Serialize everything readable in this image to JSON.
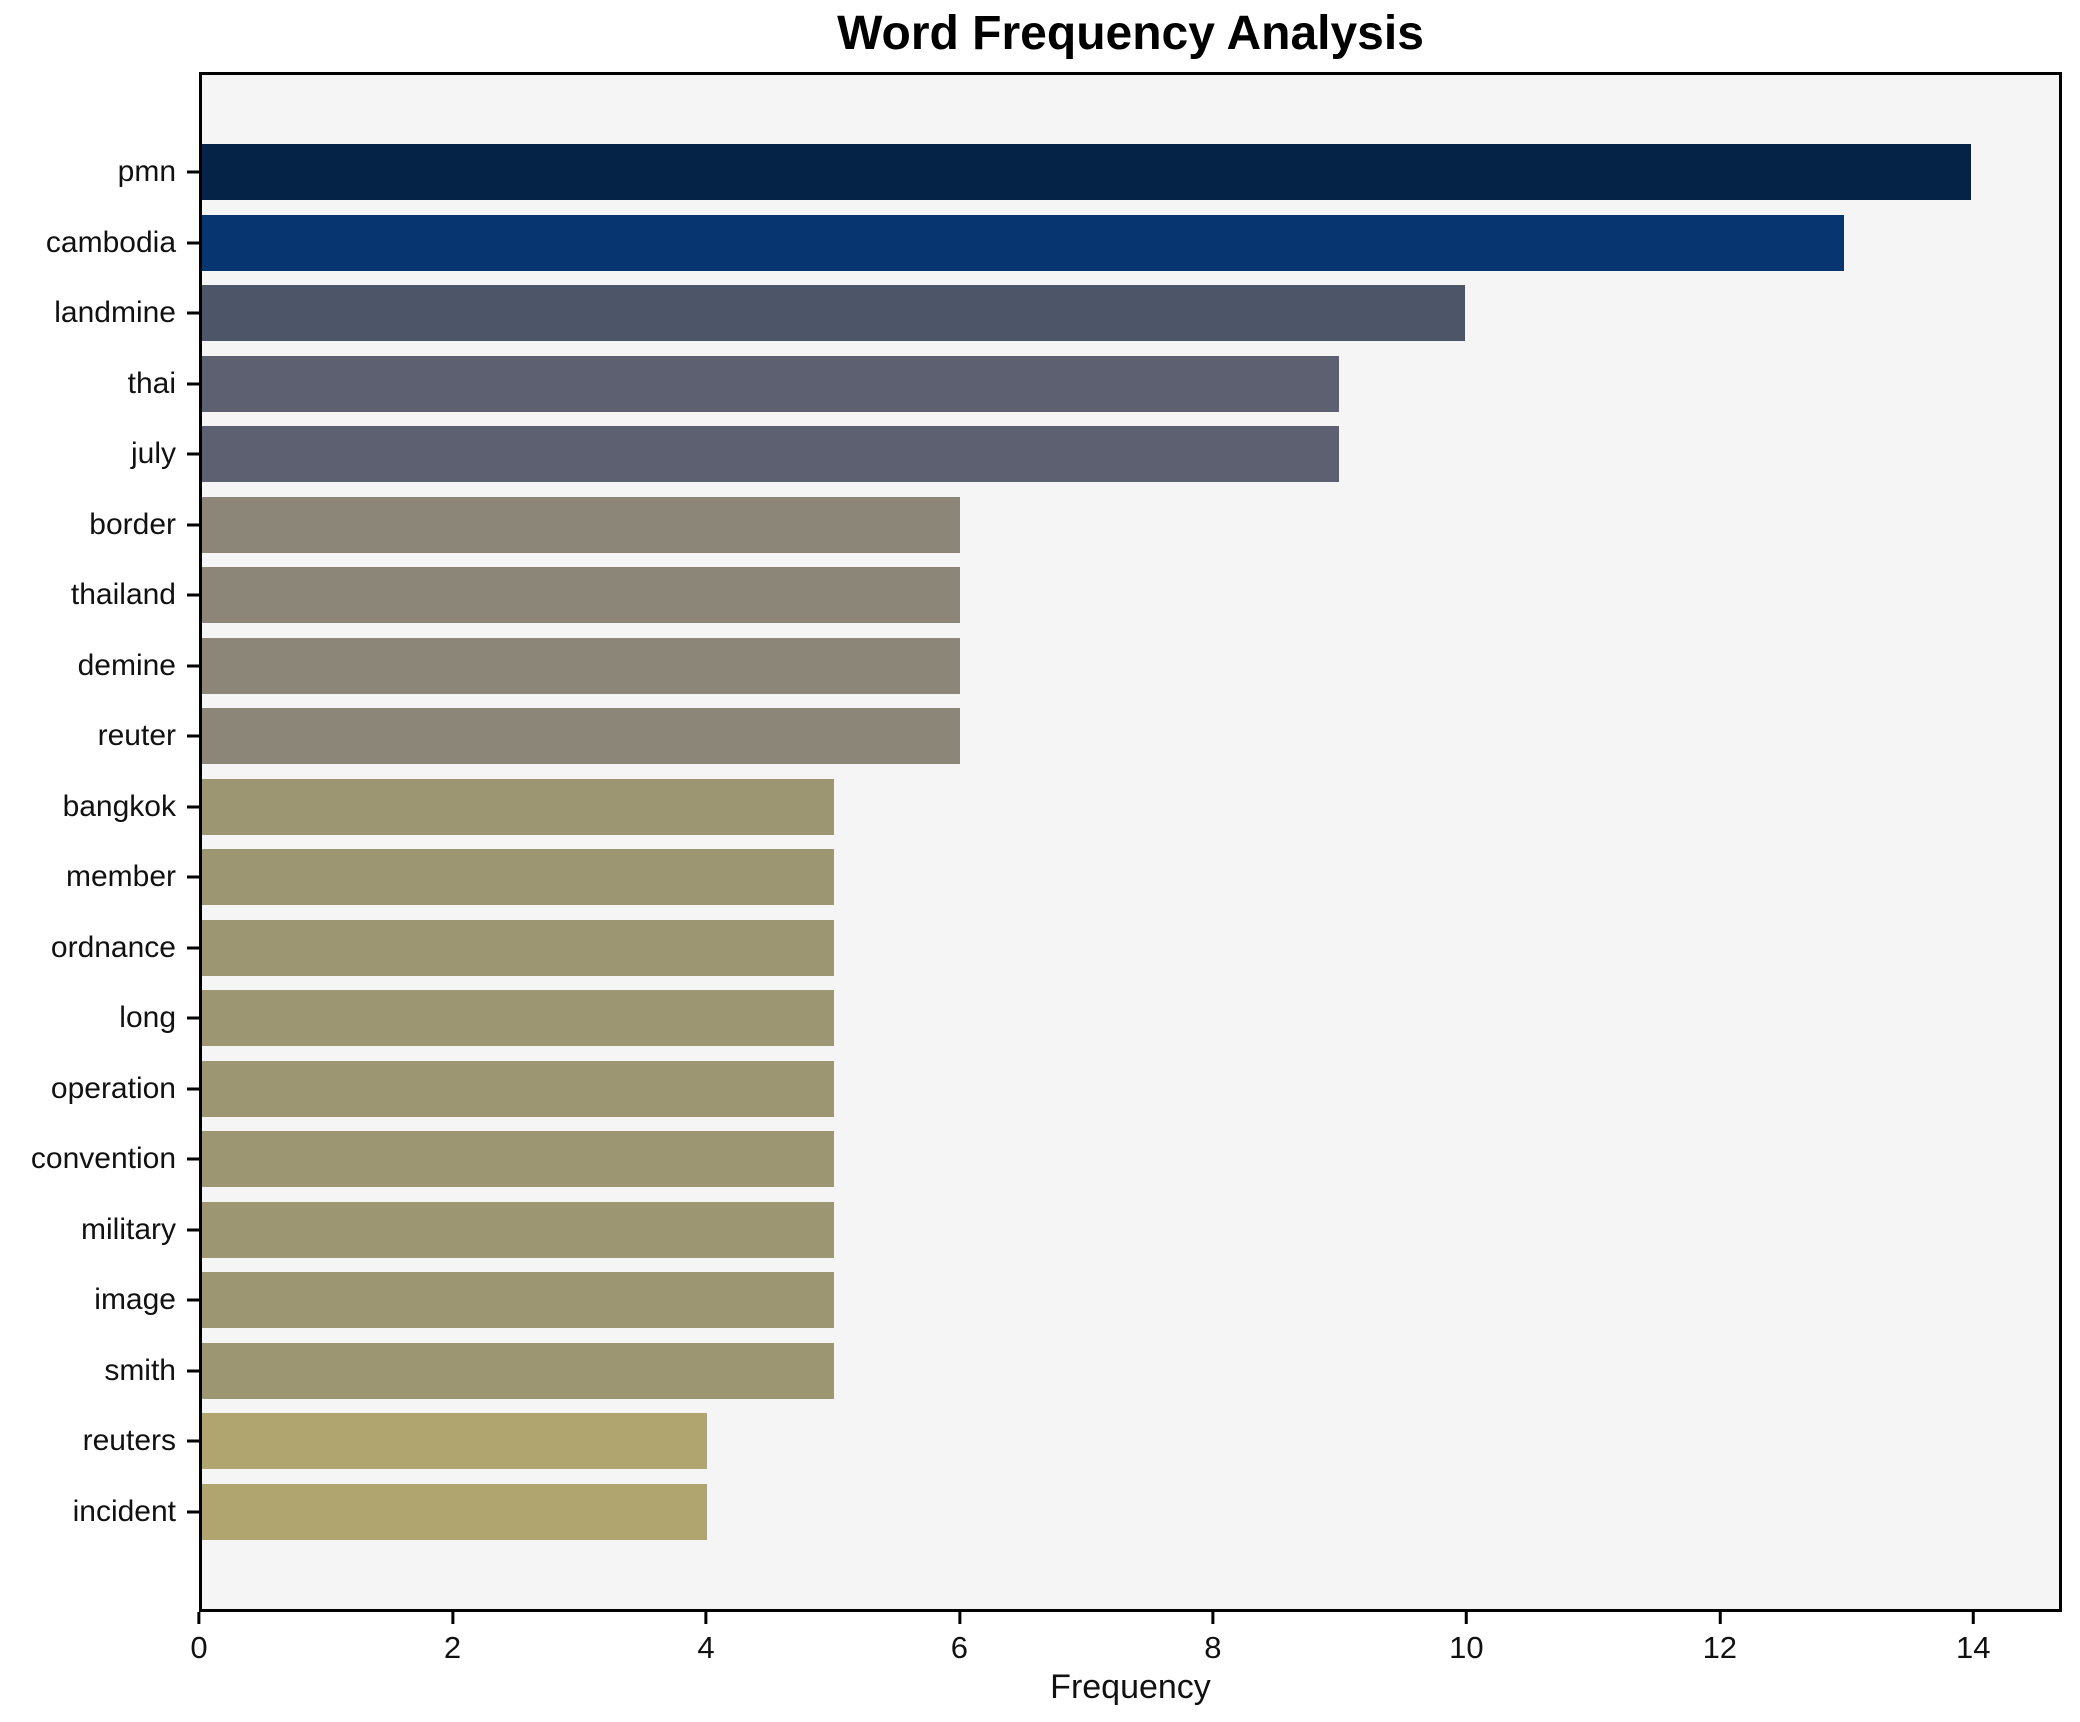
{
  "chart_data": {
    "type": "bar",
    "orientation": "horizontal",
    "title": "Word Frequency Analysis",
    "xlabel": "Frequency",
    "ylabel": "",
    "categories": [
      "pmn",
      "cambodia",
      "landmine",
      "thai",
      "july",
      "border",
      "thailand",
      "demine",
      "reuter",
      "bangkok",
      "member",
      "ordnance",
      "long",
      "operation",
      "convention",
      "military",
      "image",
      "smith",
      "reuters",
      "incident"
    ],
    "values": [
      14,
      13,
      10,
      9,
      9,
      6,
      6,
      6,
      6,
      5,
      5,
      5,
      5,
      5,
      5,
      5,
      5,
      5,
      4,
      4
    ],
    "bar_colors": [
      "#042347",
      "#073570",
      "#4d5569",
      "#5c6070",
      "#5c6070",
      "#8b8678",
      "#8b8678",
      "#8b8678",
      "#8b8678",
      "#9c9673",
      "#9c9673",
      "#9c9673",
      "#9c9673",
      "#9c9673",
      "#9c9673",
      "#9c9673",
      "#9c9673",
      "#9c9673",
      "#b0a56e",
      "#b0a56e"
    ],
    "xticks": [
      0,
      2,
      4,
      6,
      8,
      10,
      12,
      14
    ],
    "xlim": [
      0,
      14.7
    ],
    "grid": false,
    "legend": null,
    "plot_background": "#f5f5f6",
    "figure_background": "#ffffff",
    "axis_color": "#000000"
  }
}
